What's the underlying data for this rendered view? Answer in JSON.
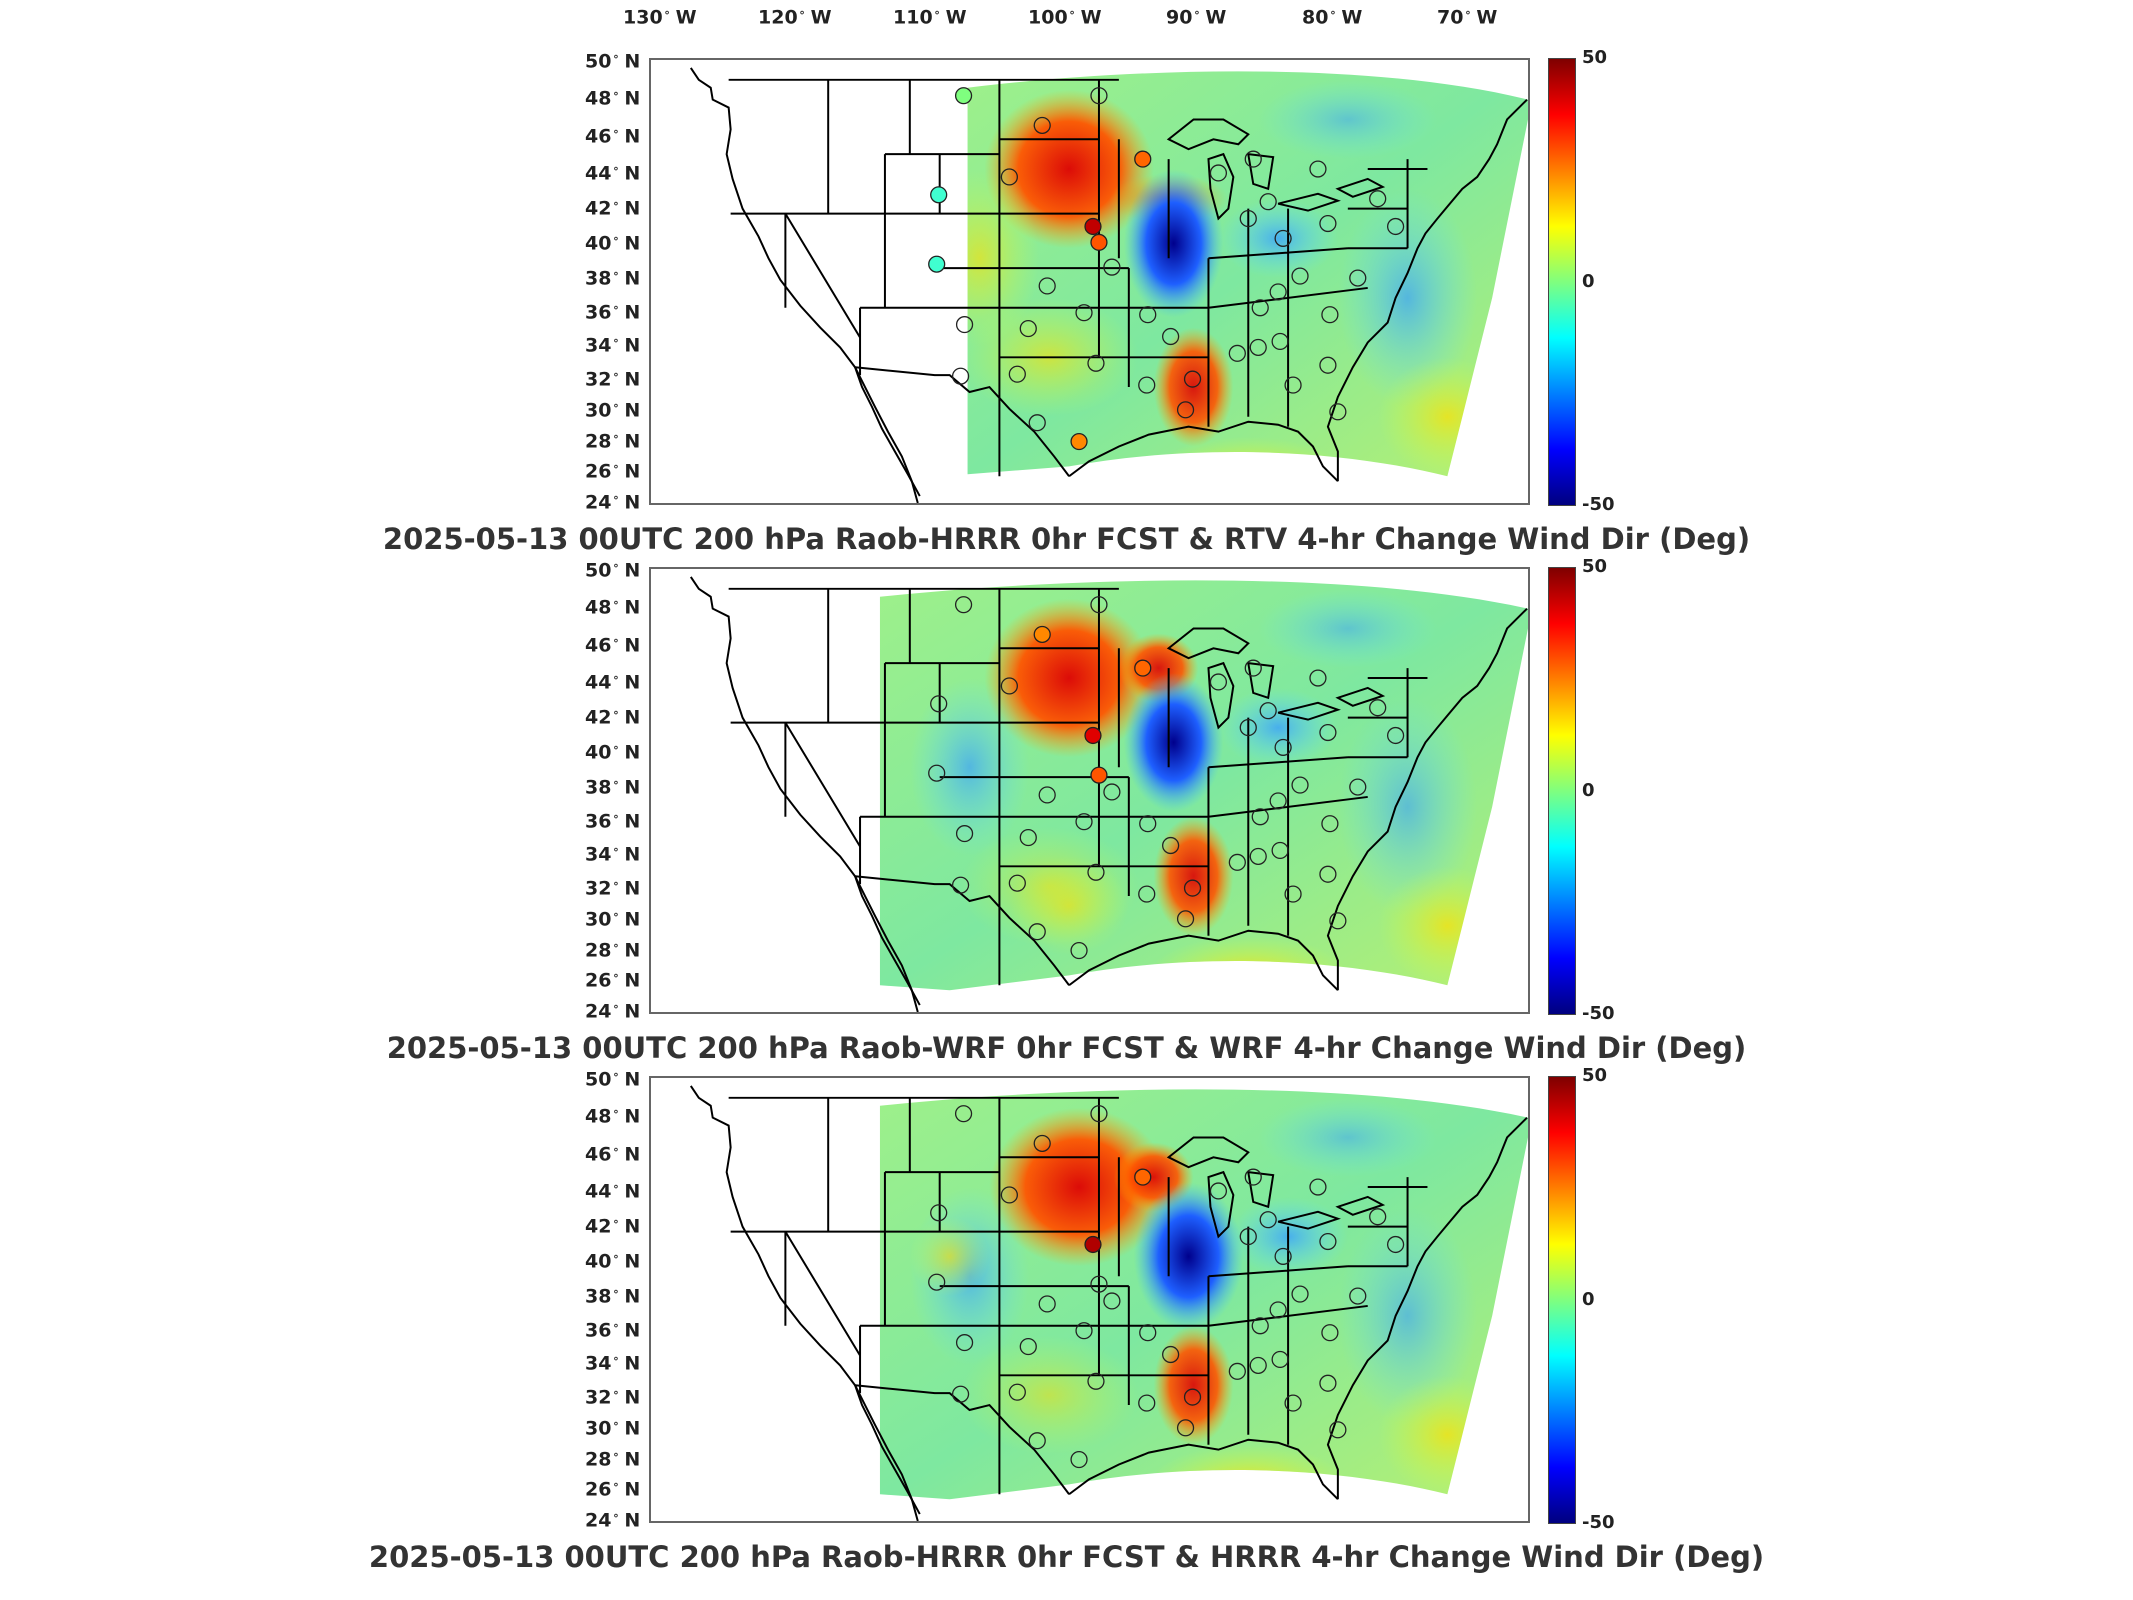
{
  "longitude_labels": [
    {
      "deg": "130",
      "dir": "W"
    },
    {
      "deg": "120",
      "dir": "W"
    },
    {
      "deg": "110",
      "dir": "W"
    },
    {
      "deg": "100",
      "dir": "W"
    },
    {
      "deg": "90",
      "dir": "W"
    },
    {
      "deg": "80",
      "dir": "W"
    },
    {
      "deg": "70",
      "dir": "W"
    }
  ],
  "latitude_labels": [
    {
      "deg": "50",
      "dir": "N"
    },
    {
      "deg": "48",
      "dir": "N"
    },
    {
      "deg": "46",
      "dir": "N"
    },
    {
      "deg": "44",
      "dir": "N"
    },
    {
      "deg": "42",
      "dir": "N"
    },
    {
      "deg": "40",
      "dir": "N"
    },
    {
      "deg": "38",
      "dir": "N"
    },
    {
      "deg": "36",
      "dir": "N"
    },
    {
      "deg": "34",
      "dir": "N"
    },
    {
      "deg": "32",
      "dir": "N"
    },
    {
      "deg": "30",
      "dir": "N"
    },
    {
      "deg": "28",
      "dir": "N"
    },
    {
      "deg": "26",
      "dir": "N"
    },
    {
      "deg": "24",
      "dir": "N"
    }
  ],
  "colorbar": {
    "max": "50",
    "mid": "0",
    "min": "-50",
    "colors": [
      "#7f0000",
      "#ff0000",
      "#ff7f00",
      "#ffff00",
      "#7fff7f",
      "#00ffff",
      "#007fff",
      "#0000ff",
      "#00007f"
    ]
  },
  "panels": [
    {
      "title": "2025-05-13 00UTC 200 hPa Raob-HRRR 0hr FCST & RTV 4-hr Change Wind Dir (Deg)"
    },
    {
      "title": "2025-05-13 00UTC 200 hPa Raob-WRF 0hr FCST & WRF 4-hr Change Wind Dir (Deg)"
    },
    {
      "title": "2025-05-13 00UTC 200 hPa Raob-HRRR 0hr FCST & HRRR 4-hr Change Wind Dir (Deg)"
    }
  ]
}
